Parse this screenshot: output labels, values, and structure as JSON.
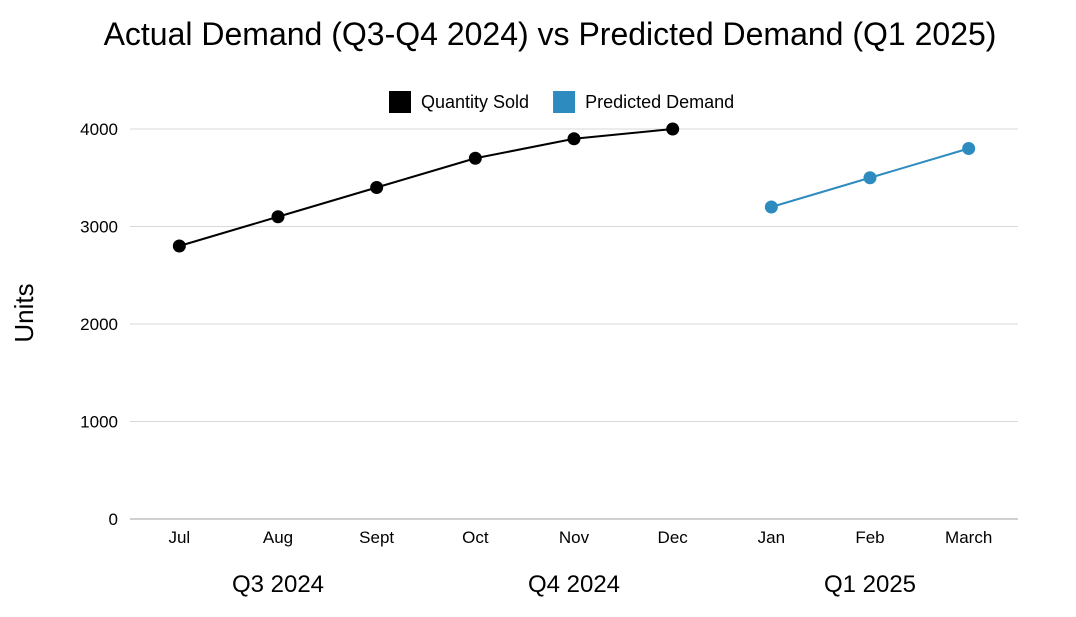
{
  "chart_data": {
    "type": "line",
    "title": "Actual Demand (Q3-Q4 2024) vs Predicted Demand (Q1 2025)",
    "ylabel": "Units",
    "xlabel": "",
    "ylim": [
      0,
      4000
    ],
    "yticks": [
      0,
      1000,
      2000,
      3000,
      4000
    ],
    "grid": true,
    "legend_position": "top-center",
    "categories": [
      "Jul",
      "Aug",
      "Sept",
      "Oct",
      "Nov",
      "Dec",
      "Jan",
      "Feb",
      "March"
    ],
    "groups": [
      {
        "label": "Q3 2024",
        "categories": [
          "Jul",
          "Aug",
          "Sept"
        ]
      },
      {
        "label": "Q4 2024",
        "categories": [
          "Oct",
          "Nov",
          "Dec"
        ]
      },
      {
        "label": "Q1 2025",
        "categories": [
          "Jan",
          "Feb",
          "March"
        ]
      }
    ],
    "series": [
      {
        "name": "Quantity Sold",
        "color": "#000000",
        "x": [
          "Jul",
          "Aug",
          "Sept",
          "Oct",
          "Nov",
          "Dec"
        ],
        "values": [
          2800,
          3100,
          3400,
          3700,
          3900,
          4000
        ]
      },
      {
        "name": "Predicted Demand",
        "color": "#2e8bc0",
        "x": [
          "Jan",
          "Feb",
          "March"
        ],
        "values": [
          3200,
          3500,
          3800
        ]
      }
    ]
  }
}
